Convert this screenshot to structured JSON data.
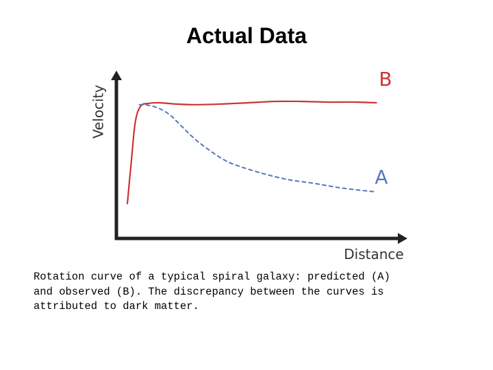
{
  "slide": {
    "title": "Actual Data",
    "caption": "Rotation curve of a typical spiral galaxy: predicted (A)\nand observed (B). The discrepancy between the curves is\nattributed to dark matter."
  },
  "chart_data": {
    "type": "line",
    "title": "",
    "xlabel": "Distance",
    "ylabel": "Velocity",
    "xlim": [
      0,
      10
    ],
    "ylim": [
      0,
      10
    ],
    "grid": false,
    "axis_ticks": false,
    "series": [
      {
        "name": "B",
        "label": "B",
        "color": "#cc3333",
        "dash": "solid",
        "x": [
          0.0,
          0.15,
          0.3,
          0.5,
          0.8,
          1.2,
          1.8,
          2.5,
          3.5,
          4.5,
          5.5,
          6.5,
          7.5,
          8.5,
          9.3
        ],
        "y": [
          1.2,
          4.5,
          7.5,
          8.7,
          8.9,
          8.95,
          8.85,
          8.8,
          8.85,
          8.95,
          9.05,
          9.05,
          9.0,
          9.0,
          8.95
        ]
      },
      {
        "name": "A",
        "label": "A",
        "color": "#5577bb",
        "dash": "dashed",
        "x": [
          0.45,
          0.8,
          1.2,
          1.6,
          2.0,
          2.5,
          3.0,
          3.5,
          4.0,
          5.0,
          6.0,
          7.0,
          8.0,
          9.3
        ],
        "y": [
          8.8,
          8.75,
          8.5,
          8.0,
          7.2,
          6.2,
          5.4,
          4.7,
          4.2,
          3.55,
          3.05,
          2.75,
          2.4,
          2.1
        ]
      }
    ]
  }
}
